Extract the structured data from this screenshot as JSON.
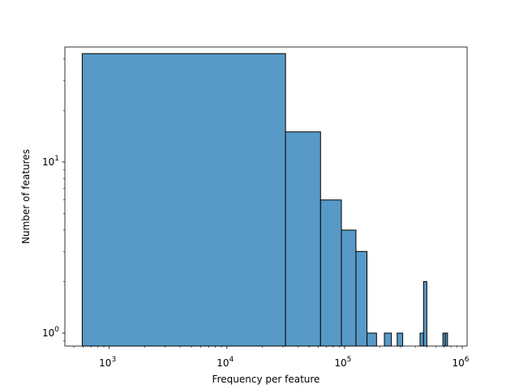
{
  "chart_data": {
    "type": "bar",
    "title": "",
    "xlabel": "Frequency per feature",
    "ylabel": "Number of features",
    "xscale": "log",
    "yscale": "log",
    "xlim": [
      420,
      1100000
    ],
    "ylim": [
      0.84,
      47
    ],
    "grid": false,
    "bar_color": "#5799c7",
    "edge_color": "#000000",
    "x_ticks": [
      {
        "value": 1000,
        "base": "10",
        "exp": "3"
      },
      {
        "value": 10000,
        "base": "10",
        "exp": "4"
      },
      {
        "value": 100000,
        "base": "10",
        "exp": "5"
      },
      {
        "value": 1000000,
        "base": "10",
        "exp": "6"
      }
    ],
    "y_ticks": [
      {
        "value": 1,
        "base": "10",
        "exp": "0"
      },
      {
        "value": 10,
        "base": "10",
        "exp": "1"
      }
    ],
    "bins": [
      {
        "x0": 590,
        "x1": 31500,
        "count": 43
      },
      {
        "x0": 31500,
        "x1": 62500,
        "count": 15
      },
      {
        "x0": 62500,
        "x1": 94000,
        "count": 6
      },
      {
        "x0": 94000,
        "x1": 125000,
        "count": 4
      },
      {
        "x0": 125000,
        "x1": 155000,
        "count": 3
      },
      {
        "x0": 155000,
        "x1": 187000,
        "count": 1
      },
      {
        "x0": 218000,
        "x1": 250000,
        "count": 1
      },
      {
        "x0": 280000,
        "x1": 312000,
        "count": 1
      },
      {
        "x0": 438000,
        "x1": 469000,
        "count": 1
      },
      {
        "x0": 469000,
        "x1": 500000,
        "count": 2
      },
      {
        "x0": 685000,
        "x1": 718000,
        "count": 1
      },
      {
        "x0": 718000,
        "x1": 750000,
        "count": 1
      }
    ]
  }
}
